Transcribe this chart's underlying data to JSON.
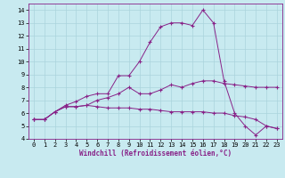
{
  "xlabel": "Windchill (Refroidissement éolien,°C)",
  "background_color": "#c8eaf0",
  "grid_color": "#aad4dc",
  "line_color": "#882288",
  "x": [
    0,
    1,
    2,
    3,
    4,
    5,
    6,
    7,
    8,
    9,
    10,
    11,
    12,
    13,
    14,
    15,
    16,
    17,
    18,
    19,
    20,
    21,
    22,
    23
  ],
  "line1": [
    5.5,
    5.5,
    6.1,
    6.5,
    6.5,
    6.6,
    7.0,
    7.2,
    7.5,
    8.0,
    7.5,
    7.5,
    7.8,
    8.2,
    8.0,
    8.3,
    8.5,
    8.5,
    8.3,
    8.2,
    8.1,
    8.0,
    8.0,
    8.0
  ],
  "line2": [
    5.5,
    5.5,
    6.1,
    6.6,
    6.9,
    7.3,
    7.5,
    7.5,
    8.9,
    8.9,
    10.0,
    11.5,
    12.7,
    13.0,
    13.0,
    12.8,
    14.0,
    13.0,
    8.5,
    6.0,
    5.0,
    4.3,
    5.0,
    4.8
  ],
  "line3": [
    5.5,
    5.5,
    6.1,
    6.5,
    6.5,
    6.6,
    6.5,
    6.4,
    6.4,
    6.4,
    6.3,
    6.3,
    6.2,
    6.1,
    6.1,
    6.1,
    6.1,
    6.0,
    6.0,
    5.8,
    5.7,
    5.5,
    5.0,
    4.8
  ],
  "ylim": [
    4,
    14.5
  ],
  "xlim": [
    -0.5,
    23.5
  ],
  "yticks": [
    4,
    5,
    6,
    7,
    8,
    9,
    10,
    11,
    12,
    13,
    14
  ],
  "xticks": [
    0,
    1,
    2,
    3,
    4,
    5,
    6,
    7,
    8,
    9,
    10,
    11,
    12,
    13,
    14,
    15,
    16,
    17,
    18,
    19,
    20,
    21,
    22,
    23
  ]
}
